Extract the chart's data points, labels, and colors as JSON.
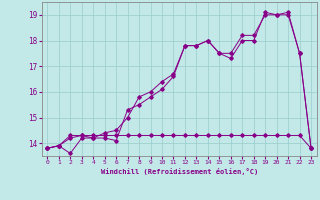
{
  "xlabel": "Windchill (Refroidissement éolien,°C)",
  "bg_color": "#c2e8e8",
  "line_color": "#880088",
  "grid_color": "#99cccc",
  "xlim": [
    -0.5,
    23.5
  ],
  "ylim": [
    13.5,
    19.5
  ],
  "xticks": [
    0,
    1,
    2,
    3,
    4,
    5,
    6,
    7,
    8,
    9,
    10,
    11,
    12,
    13,
    14,
    15,
    16,
    17,
    18,
    19,
    20,
    21,
    22,
    23
  ],
  "yticks": [
    14,
    15,
    16,
    17,
    18,
    19
  ],
  "line1_x": [
    0,
    1,
    2,
    3,
    4,
    5,
    6,
    7,
    8,
    9,
    10,
    11,
    12,
    13,
    14,
    15,
    16,
    17,
    18,
    19,
    20,
    21,
    22,
    23
  ],
  "line1_y": [
    13.8,
    13.9,
    13.6,
    14.2,
    14.2,
    14.2,
    14.1,
    15.3,
    15.5,
    15.8,
    16.1,
    16.6,
    17.8,
    17.8,
    18.0,
    17.5,
    17.3,
    18.0,
    18.0,
    19.1,
    19.0,
    19.1,
    17.5,
    13.8
  ],
  "line2_x": [
    0,
    1,
    2,
    3,
    4,
    5,
    6,
    7,
    8,
    9,
    10,
    11,
    12,
    13,
    14,
    15,
    16,
    17,
    18,
    19,
    20,
    21,
    22,
    23
  ],
  "line2_y": [
    13.8,
    13.9,
    14.2,
    14.3,
    14.2,
    14.4,
    14.5,
    15.0,
    15.8,
    16.0,
    16.4,
    16.7,
    17.8,
    17.8,
    18.0,
    17.5,
    17.5,
    18.2,
    18.2,
    19.0,
    19.0,
    19.0,
    17.5,
    13.8
  ],
  "line3_x": [
    0,
    1,
    2,
    3,
    4,
    5,
    6,
    7,
    8,
    9,
    10,
    11,
    12,
    13,
    14,
    15,
    16,
    17,
    18,
    19,
    20,
    21,
    22,
    23
  ],
  "line3_y": [
    13.8,
    13.9,
    14.3,
    14.3,
    14.3,
    14.3,
    14.3,
    14.3,
    14.3,
    14.3,
    14.3,
    14.3,
    14.3,
    14.3,
    14.3,
    14.3,
    14.3,
    14.3,
    14.3,
    14.3,
    14.3,
    14.3,
    14.3,
    13.8
  ]
}
